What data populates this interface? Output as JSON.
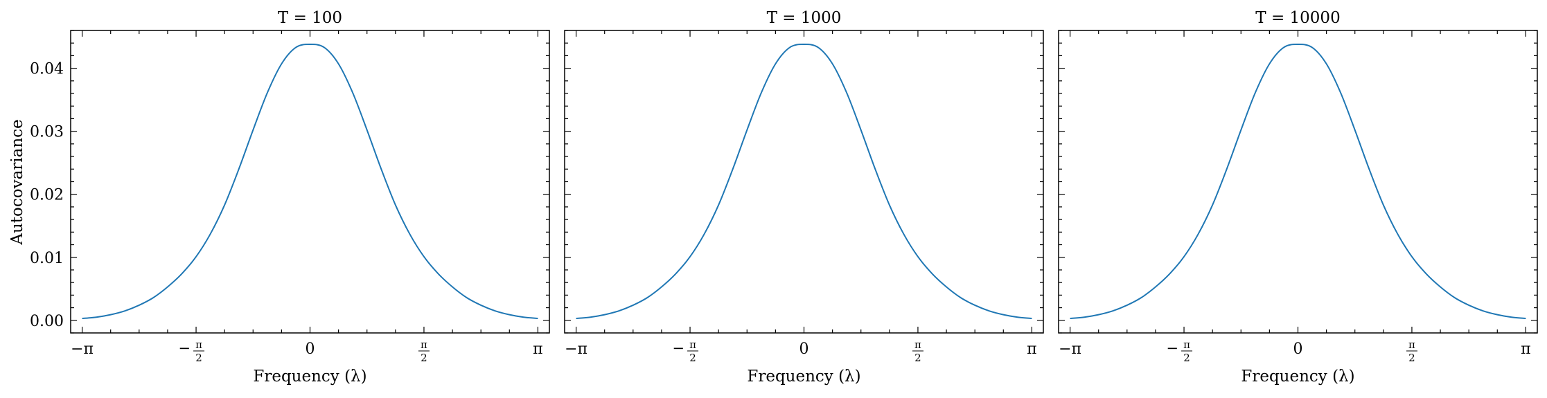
{
  "figure": {
    "ylabel": "Autocovariance",
    "xlabel": "Frequency (λ)"
  },
  "chart_data": [
    {
      "type": "line",
      "title": "T = 100",
      "xlabel": "Frequency (λ)",
      "ylabel": "Autocovariance",
      "xlim": [
        -3.3,
        3.3
      ],
      "ylim": [
        -0.002,
        0.046
      ],
      "x_ticks": [
        -3.14159,
        -1.5708,
        0,
        1.5708,
        3.14159
      ],
      "x_tick_labels": [
        "−π",
        "−π/2",
        "0",
        "π/2",
        "π"
      ],
      "y_ticks": [
        0.0,
        0.01,
        0.02,
        0.03,
        0.04
      ],
      "y_tick_labels": [
        "0.00",
        "0.01",
        "0.02",
        "0.03",
        "0.04"
      ],
      "color": "#1f77b4",
      "series": [
        {
          "x": [
            -3.1416,
            -2.9452,
            -2.7489,
            -2.5525,
            -2.3562,
            -2.1598,
            -1.9635,
            -1.7671,
            -1.5708,
            -1.3744,
            -1.1781,
            -0.9817,
            -0.7854,
            -0.589,
            -0.3927,
            -0.1963,
            0,
            0.1963,
            0.3927,
            0.589,
            0.7854,
            0.9817,
            1.1781,
            1.3744,
            1.5708,
            1.7671,
            1.9635,
            2.1598,
            2.3562,
            2.5525,
            2.7489,
            2.9452,
            3.1416
          ],
          "values": [
            0.0003,
            0.0005,
            0.0009,
            0.0015,
            0.0024,
            0.0036,
            0.0053,
            0.0074,
            0.0101,
            0.0137,
            0.0183,
            0.024,
            0.0302,
            0.0361,
            0.0407,
            0.0433,
            0.0438,
            0.0433,
            0.0407,
            0.0361,
            0.0302,
            0.024,
            0.0183,
            0.0137,
            0.0101,
            0.0074,
            0.0053,
            0.0036,
            0.0024,
            0.0015,
            0.0009,
            0.0005,
            0.0003
          ]
        }
      ]
    },
    {
      "type": "line",
      "title": "T = 1000",
      "xlabel": "Frequency (λ)",
      "xlim": [
        -3.3,
        3.3
      ],
      "ylim": [
        -0.002,
        0.046
      ],
      "x_ticks": [
        -3.14159,
        -1.5708,
        0,
        1.5708,
        3.14159
      ],
      "x_tick_labels": [
        "−π",
        "−π/2",
        "0",
        "π/2",
        "π"
      ],
      "y_ticks": [
        0.0,
        0.01,
        0.02,
        0.03,
        0.04
      ],
      "color": "#1f77b4",
      "series": [
        {
          "x": [
            -3.1416,
            -2.9452,
            -2.7489,
            -2.5525,
            -2.3562,
            -2.1598,
            -1.9635,
            -1.7671,
            -1.5708,
            -1.3744,
            -1.1781,
            -0.9817,
            -0.7854,
            -0.589,
            -0.3927,
            -0.1963,
            0,
            0.1963,
            0.3927,
            0.589,
            0.7854,
            0.9817,
            1.1781,
            1.3744,
            1.5708,
            1.7671,
            1.9635,
            2.1598,
            2.3562,
            2.5525,
            2.7489,
            2.9452,
            3.1416
          ],
          "values": [
            0.0003,
            0.0005,
            0.0009,
            0.0015,
            0.0024,
            0.0036,
            0.0053,
            0.0074,
            0.0101,
            0.0137,
            0.0183,
            0.024,
            0.0302,
            0.0361,
            0.0407,
            0.0433,
            0.0438,
            0.0433,
            0.0407,
            0.0361,
            0.0302,
            0.024,
            0.0183,
            0.0137,
            0.0101,
            0.0074,
            0.0053,
            0.0036,
            0.0024,
            0.0015,
            0.0009,
            0.0005,
            0.0003
          ]
        }
      ]
    },
    {
      "type": "line",
      "title": "T = 10000",
      "xlabel": "Frequency (λ)",
      "xlim": [
        -3.3,
        3.3
      ],
      "ylim": [
        -0.002,
        0.046
      ],
      "x_ticks": [
        -3.14159,
        -1.5708,
        0,
        1.5708,
        3.14159
      ],
      "x_tick_labels": [
        "−π",
        "−π/2",
        "0",
        "π/2",
        "π"
      ],
      "y_ticks": [
        0.0,
        0.01,
        0.02,
        0.03,
        0.04
      ],
      "color": "#1f77b4",
      "series": [
        {
          "x": [
            -3.1416,
            -2.9452,
            -2.7489,
            -2.5525,
            -2.3562,
            -2.1598,
            -1.9635,
            -1.7671,
            -1.5708,
            -1.3744,
            -1.1781,
            -0.9817,
            -0.7854,
            -0.589,
            -0.3927,
            -0.1963,
            0,
            0.1963,
            0.3927,
            0.589,
            0.7854,
            0.9817,
            1.1781,
            1.3744,
            1.5708,
            1.7671,
            1.9635,
            2.1598,
            2.3562,
            2.5525,
            2.7489,
            2.9452,
            3.1416
          ],
          "values": [
            0.0003,
            0.0005,
            0.0009,
            0.0015,
            0.0024,
            0.0036,
            0.0053,
            0.0074,
            0.0101,
            0.0137,
            0.0183,
            0.024,
            0.0302,
            0.0361,
            0.0407,
            0.0433,
            0.0438,
            0.0433,
            0.0407,
            0.0361,
            0.0302,
            0.024,
            0.0183,
            0.0137,
            0.0101,
            0.0074,
            0.0053,
            0.0036,
            0.0024,
            0.0015,
            0.0009,
            0.0005,
            0.0003
          ]
        }
      ]
    }
  ]
}
